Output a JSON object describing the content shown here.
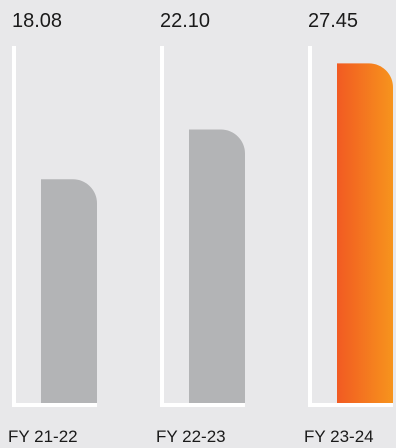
{
  "chart_data": {
    "type": "bar",
    "title": "",
    "xlabel": "",
    "ylabel": "",
    "categories": [
      "FY 21-22",
      "FY 22-23",
      "FY 23-24"
    ],
    "values": [
      18.08,
      22.1,
      27.45
    ],
    "value_labels": [
      "18.08",
      "22.10",
      "27.45"
    ],
    "ylim": [
      0,
      29.5
    ],
    "grid": false,
    "legend": "none",
    "colors": {
      "default_bar": "#b3b4b6",
      "highlight_bar_start": "#f15a22",
      "highlight_bar_end": "#f7941d",
      "axis_line": "#ffffff",
      "text": "#1a1a1a"
    },
    "highlight_index": 2
  }
}
